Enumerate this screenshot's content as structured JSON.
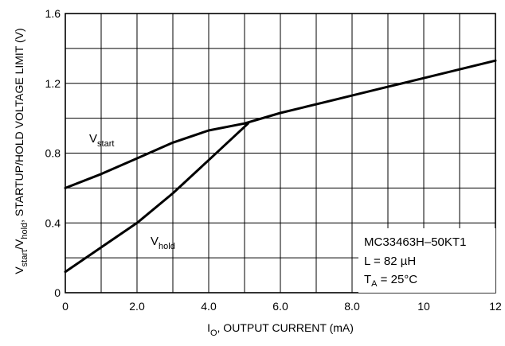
{
  "chart_data": {
    "type": "line",
    "title": "",
    "xlabel": {
      "main": "I",
      "sub": "O",
      "rest": ", OUTPUT CURRENT (mA)"
    },
    "ylabel": {
      "p1": "V",
      "p1_sub": "start",
      "p2": "/V",
      "p2_sub": "hold",
      "p3": ", STARTUP/HOLD VOLTAGE LIMIT (V)"
    },
    "xlim": [
      0,
      12
    ],
    "ylim": [
      0,
      1.6
    ],
    "xticks": [
      0,
      2,
      4,
      6,
      8,
      10,
      12
    ],
    "xtick_labels": [
      "0",
      "2.0",
      "4.0",
      "6.0",
      "8.0",
      "10",
      "12"
    ],
    "yticks": [
      0,
      0.4,
      0.8,
      1.2,
      1.6
    ],
    "ytick_labels": [
      "0",
      "0.4",
      "0.8",
      "1.2",
      "1.6"
    ],
    "grid_x_step": 1,
    "grid_y_step": 0.2,
    "grid": true,
    "series": [
      {
        "name": "V_start",
        "x": [
          0,
          1,
          2,
          3,
          4,
          5,
          6,
          7,
          8,
          9,
          10,
          11,
          12
        ],
        "y": [
          0.6,
          0.68,
          0.77,
          0.86,
          0.93,
          0.97,
          1.03,
          1.08,
          1.13,
          1.18,
          1.23,
          1.28,
          1.33
        ]
      },
      {
        "name": "V_hold",
        "x": [
          0,
          1,
          2,
          3,
          4,
          5.1
        ],
        "y": [
          0.12,
          0.26,
          0.4,
          0.57,
          0.76,
          0.97
        ]
      }
    ],
    "annotations": {
      "vstart": {
        "main": "V",
        "sub": "start"
      },
      "vhold": {
        "main": "V",
        "sub": "hold"
      }
    },
    "legend_box": {
      "line1": "MC33463H–50KT1",
      "line2": "L = 82 µH",
      "line3_main": "T",
      "line3_sub": "A",
      "line3_rest": " = 25°C"
    }
  }
}
